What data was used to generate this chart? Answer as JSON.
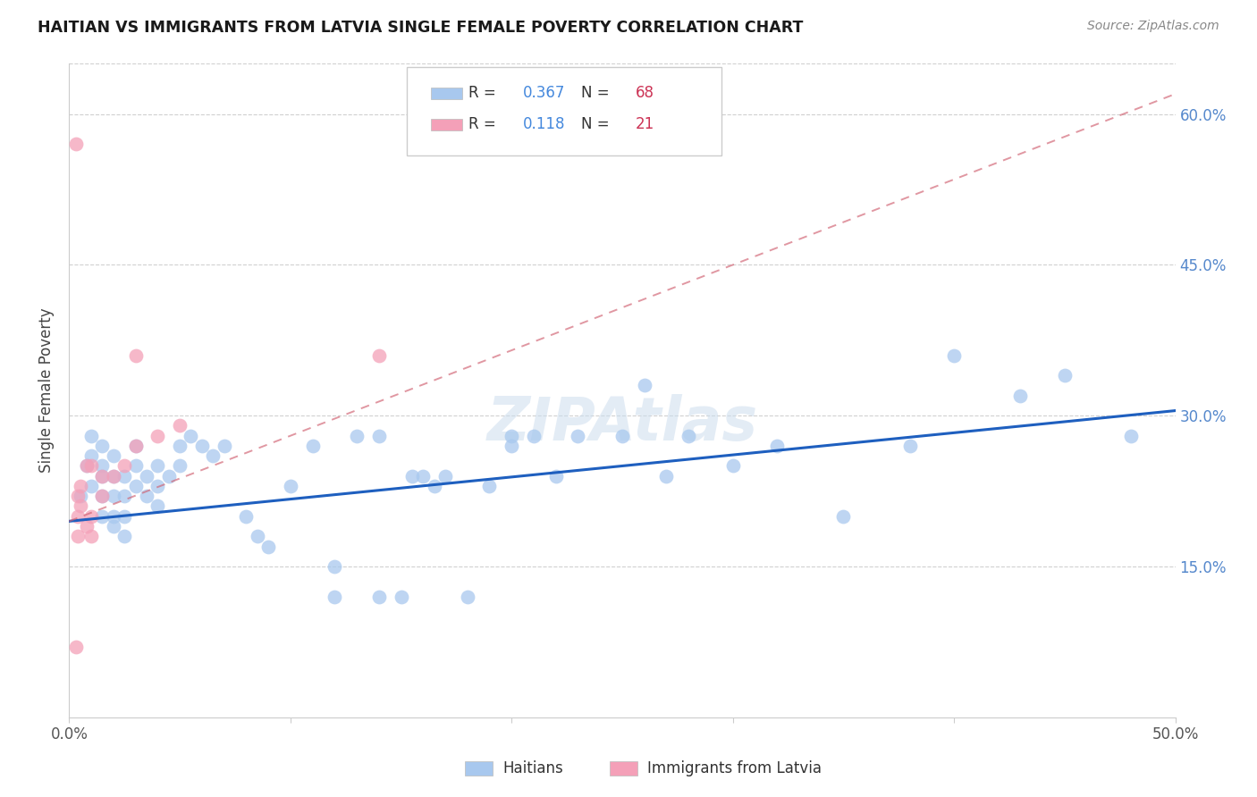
{
  "title": "HAITIAN VS IMMIGRANTS FROM LATVIA SINGLE FEMALE POVERTY CORRELATION CHART",
  "source": "Source: ZipAtlas.com",
  "ylabel": "Single Female Poverty",
  "xlim": [
    0.0,
    0.5
  ],
  "ylim": [
    0.0,
    0.65
  ],
  "ytick_vals": [
    0.15,
    0.3,
    0.45,
    0.6
  ],
  "ytick_labels": [
    "15.0%",
    "30.0%",
    "45.0%",
    "60.0%"
  ],
  "xtick_vals": [
    0.0,
    0.1,
    0.2,
    0.3,
    0.4,
    0.5
  ],
  "xtick_labels": [
    "0.0%",
    "",
    "",
    "",
    "",
    "50.0%"
  ],
  "blue_color": "#A8C8EE",
  "pink_color": "#F4A0B8",
  "blue_line_color": "#1E5FBF",
  "pink_line_color": "#D06070",
  "blue_trend_x0": 0.0,
  "blue_trend_y0": 0.195,
  "blue_trend_x1": 0.5,
  "blue_trend_y1": 0.305,
  "pink_trend_x0": 0.0,
  "pink_trend_y0": 0.195,
  "pink_trend_x1": 0.5,
  "pink_trend_y1": 0.62,
  "haitians_x": [
    0.005,
    0.008,
    0.01,
    0.01,
    0.01,
    0.015,
    0.015,
    0.015,
    0.015,
    0.015,
    0.02,
    0.02,
    0.02,
    0.02,
    0.02,
    0.025,
    0.025,
    0.025,
    0.025,
    0.03,
    0.03,
    0.03,
    0.035,
    0.035,
    0.04,
    0.04,
    0.04,
    0.045,
    0.05,
    0.05,
    0.055,
    0.06,
    0.065,
    0.07,
    0.08,
    0.085,
    0.09,
    0.1,
    0.11,
    0.12,
    0.12,
    0.13,
    0.14,
    0.14,
    0.15,
    0.155,
    0.16,
    0.165,
    0.17,
    0.18,
    0.19,
    0.2,
    0.2,
    0.21,
    0.22,
    0.23,
    0.25,
    0.26,
    0.27,
    0.28,
    0.3,
    0.32,
    0.35,
    0.38,
    0.4,
    0.43,
    0.45,
    0.48
  ],
  "haitians_y": [
    0.22,
    0.25,
    0.28,
    0.26,
    0.23,
    0.25,
    0.27,
    0.24,
    0.22,
    0.2,
    0.26,
    0.24,
    0.22,
    0.2,
    0.19,
    0.24,
    0.22,
    0.2,
    0.18,
    0.27,
    0.25,
    0.23,
    0.24,
    0.22,
    0.25,
    0.23,
    0.21,
    0.24,
    0.27,
    0.25,
    0.28,
    0.27,
    0.26,
    0.27,
    0.2,
    0.18,
    0.17,
    0.23,
    0.27,
    0.12,
    0.15,
    0.28,
    0.12,
    0.28,
    0.12,
    0.24,
    0.24,
    0.23,
    0.24,
    0.12,
    0.23,
    0.28,
    0.27,
    0.28,
    0.24,
    0.28,
    0.28,
    0.33,
    0.24,
    0.28,
    0.25,
    0.27,
    0.2,
    0.27,
    0.36,
    0.32,
    0.34,
    0.28
  ],
  "latvia_x": [
    0.003,
    0.003,
    0.004,
    0.004,
    0.004,
    0.005,
    0.005,
    0.008,
    0.008,
    0.01,
    0.01,
    0.01,
    0.015,
    0.015,
    0.02,
    0.025,
    0.03,
    0.03,
    0.04,
    0.05,
    0.14
  ],
  "latvia_y": [
    0.57,
    0.07,
    0.22,
    0.2,
    0.18,
    0.23,
    0.21,
    0.25,
    0.19,
    0.25,
    0.2,
    0.18,
    0.24,
    0.22,
    0.24,
    0.25,
    0.27,
    0.36,
    0.28,
    0.29,
    0.36
  ],
  "watermark": "ZIPAtlas"
}
